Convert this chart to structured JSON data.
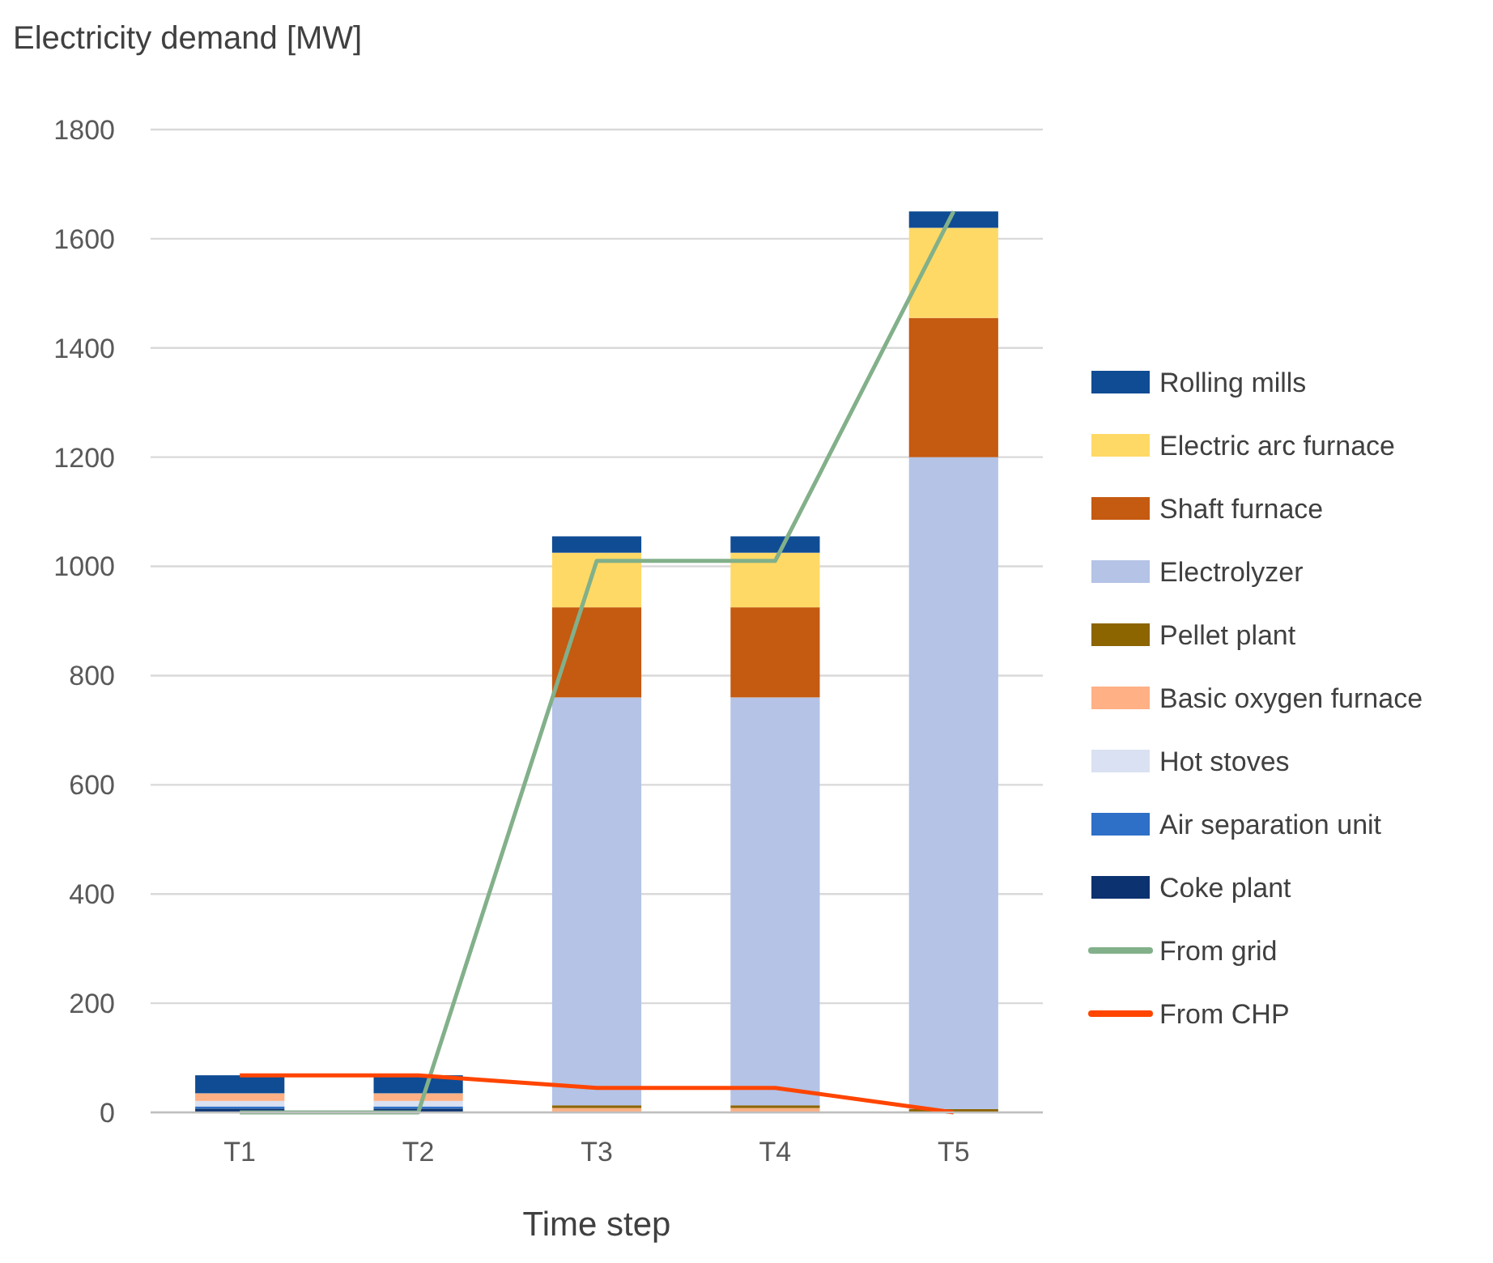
{
  "chart_data": {
    "type": "bar",
    "stacked": true,
    "ylabel": "Electricity demand [MW]",
    "xlabel": "Time step",
    "categories": [
      "T1",
      "T2",
      "T3",
      "T4",
      "T5"
    ],
    "ylim": [
      0,
      1800
    ],
    "yticks": [
      0,
      200,
      400,
      600,
      800,
      1000,
      1200,
      1400,
      1600,
      1800
    ],
    "grid": "y",
    "legend": "right",
    "marker": "none",
    "series": [
      {
        "name": "Coke plant",
        "color": "#0c3370",
        "values": [
          7,
          7,
          0,
          0,
          0
        ]
      },
      {
        "name": "Air separation unit",
        "color": "#2e6fc7",
        "values": [
          4,
          4,
          0,
          0,
          0
        ]
      },
      {
        "name": "Hot stoves",
        "color": "#d9e1f2",
        "values": [
          10,
          10,
          0,
          0,
          0
        ]
      },
      {
        "name": "Basic oxygen furnace",
        "color": "#ffb084",
        "values": [
          14,
          14,
          8,
          8,
          0
        ]
      },
      {
        "name": "Pellet plant",
        "color": "#8c6400",
        "values": [
          0,
          0,
          5,
          5,
          6
        ]
      },
      {
        "name": "Electrolyzer",
        "color": "#b4c3e6",
        "values": [
          0,
          0,
          747,
          747,
          1194
        ]
      },
      {
        "name": "Shaft furnace",
        "color": "#c55a11",
        "values": [
          0,
          0,
          165,
          165,
          255
        ]
      },
      {
        "name": "Electric arc furnace",
        "color": "#ffd966",
        "values": [
          0,
          0,
          100,
          100,
          165
        ]
      },
      {
        "name": "Rolling mills",
        "color": "#0f4c94",
        "values": [
          33,
          33,
          30,
          30,
          30
        ]
      },
      {
        "name": "From grid",
        "type": "line",
        "color": "#82b08a",
        "values": [
          0,
          0,
          1010,
          1010,
          1650
        ]
      },
      {
        "name": "From CHP",
        "type": "line",
        "color": "#ff4500",
        "values": [
          68,
          68,
          45,
          45,
          0
        ]
      }
    ]
  }
}
